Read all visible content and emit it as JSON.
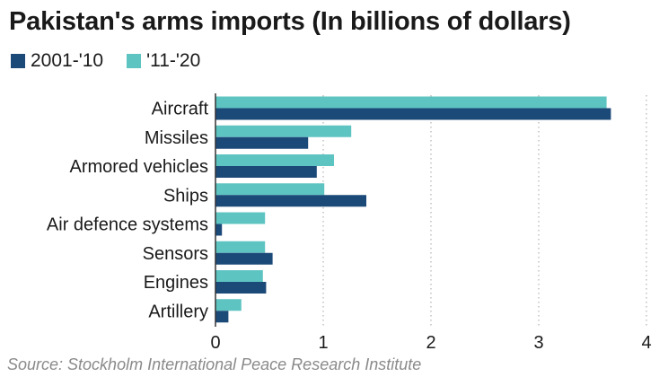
{
  "header": {
    "title": "Pakistan's arms imports (In billions of dollars)"
  },
  "source_note": "Source: Stockholm International Peace Research Institute",
  "colors": {
    "series_2001_10": "#1c4a78",
    "series_11_20": "#5ec4c2",
    "grid": "#bdbdbd",
    "axis": "#333333"
  },
  "chart_data": {
    "type": "bar",
    "orientation": "horizontal",
    "title": "Pakistan's arms imports (In billions of dollars)",
    "categories": [
      "Aircraft",
      "Missiles",
      "Armored vehicles",
      "Ships",
      "Air defence systems",
      "Sensors",
      "Engines",
      "Artillery"
    ],
    "series": [
      {
        "name": "2001-'10",
        "values": [
          3.67,
          0.86,
          0.94,
          1.4,
          0.06,
          0.53,
          0.47,
          0.12
        ]
      },
      {
        "name": "'11-'20",
        "values": [
          3.63,
          1.26,
          1.1,
          1.01,
          0.46,
          0.46,
          0.44,
          0.24
        ]
      }
    ],
    "xlim": [
      0,
      4
    ],
    "xticks": [
      "0",
      "1",
      "2",
      "3",
      "4"
    ],
    "grid": true,
    "legend_position": "top-left"
  }
}
